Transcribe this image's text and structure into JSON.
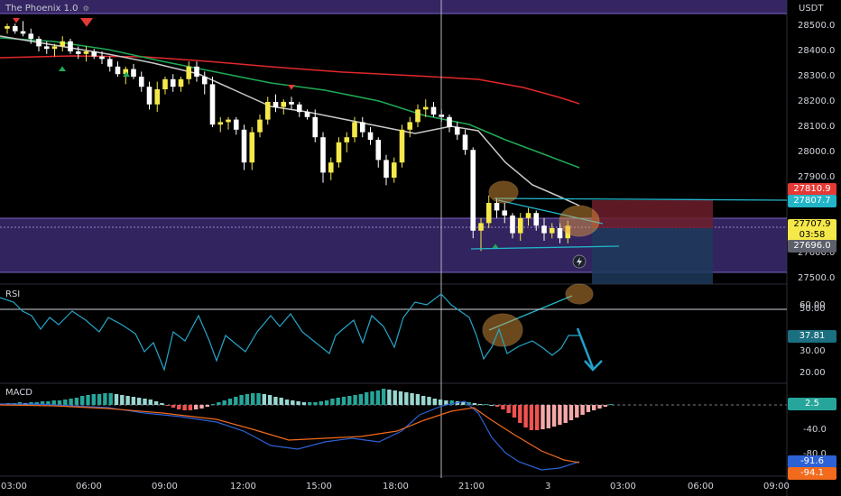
{
  "header": {
    "indicator_name": "The Phoenix 1.0"
  },
  "price_axis": {
    "currency": "USDT",
    "ticks": [
      "28500.0",
      "28400.0",
      "28300.0",
      "28200.0",
      "28100.0",
      "28000.0",
      "27900.0",
      "27600.0",
      "27500.0"
    ],
    "tags": {
      "upper_red": "27810.9",
      "upper_cyan": "27807.7",
      "last_price": "27707.9",
      "countdown": "03:58",
      "lower_gray": "27696.0"
    }
  },
  "rsi_panel": {
    "label": "RSI",
    "ticks": [
      "60.00",
      "50.00",
      "30.00",
      "20.00"
    ],
    "value": "37.81"
  },
  "macd_panel": {
    "label": "MACD",
    "ticks": [
      "-40.0",
      "-80.0"
    ],
    "histogram_value": "2.5",
    "macd_value": "-91.6",
    "signal_value": "-94.1"
  },
  "time_axis": {
    "ticks": [
      "03:00",
      "06:00",
      "09:00",
      "12:00",
      "15:00",
      "18:00",
      "21:00",
      "3",
      "03:00",
      "06:00",
      "09:00"
    ]
  },
  "colors": {
    "bull": "#f5e84a",
    "bear": "#ffffff",
    "ema_fast": "#c9c9c9",
    "ema_mid": "#1faa56",
    "ema_slow": "#e3282b",
    "zone": "#3b2a6e",
    "cyan": "#22b5c9",
    "macd_line": "#2d62d6",
    "signal_line": "#f26b1d",
    "hist_pos": "#26a69a",
    "hist_neg": "#ef5350"
  },
  "chart_data": {
    "type": "candlestick",
    "symbol_quote": "USDT",
    "ylim": [
      27470,
      28560
    ],
    "candles": [
      [
        28490,
        28510,
        28470,
        28500
      ],
      [
        28500,
        28510,
        28470,
        28480
      ],
      [
        28480,
        28520,
        28460,
        28470
      ],
      [
        28470,
        28490,
        28430,
        28450
      ],
      [
        28450,
        28460,
        28400,
        28420
      ],
      [
        28420,
        28440,
        28390,
        28410
      ],
      [
        28410,
        28430,
        28380,
        28420
      ],
      [
        28420,
        28460,
        28400,
        28440
      ],
      [
        28440,
        28450,
        28390,
        28400
      ],
      [
        28400,
        28420,
        28370,
        28390
      ],
      [
        28390,
        28420,
        28360,
        28400
      ],
      [
        28400,
        28410,
        28370,
        28380
      ],
      [
        28380,
        28400,
        28350,
        28370
      ],
      [
        28370,
        28380,
        28320,
        28340
      ],
      [
        28340,
        28360,
        28300,
        28310
      ],
      [
        28310,
        28340,
        28270,
        28330
      ],
      [
        28330,
        28350,
        28290,
        28300
      ],
      [
        28300,
        28320,
        28240,
        28260
      ],
      [
        28260,
        28280,
        28170,
        28190
      ],
      [
        28190,
        28280,
        28160,
        28250
      ],
      [
        28250,
        28300,
        28230,
        28290
      ],
      [
        28290,
        28310,
        28240,
        28260
      ],
      [
        28260,
        28300,
        28240,
        28290
      ],
      [
        28290,
        28360,
        28270,
        28340
      ],
      [
        28340,
        28360,
        28280,
        28300
      ],
      [
        28300,
        28320,
        28230,
        28270
      ],
      [
        28270,
        28300,
        28100,
        28110
      ],
      [
        28110,
        28140,
        28080,
        28120
      ],
      [
        28120,
        28140,
        28090,
        28130
      ],
      [
        28130,
        28140,
        28070,
        28090
      ],
      [
        28090,
        28110,
        27930,
        27960
      ],
      [
        27960,
        28100,
        27930,
        28080
      ],
      [
        28080,
        28150,
        28060,
        28130
      ],
      [
        28130,
        28220,
        28110,
        28200
      ],
      [
        28200,
        28230,
        28160,
        28180
      ],
      [
        28180,
        28210,
        28150,
        28200
      ],
      [
        28200,
        28220,
        28170,
        28190
      ],
      [
        28190,
        28200,
        28140,
        28160
      ],
      [
        28160,
        28170,
        28130,
        28140
      ],
      [
        28140,
        28170,
        28040,
        28060
      ],
      [
        28060,
        28080,
        27880,
        27920
      ],
      [
        27920,
        27980,
        27890,
        27960
      ],
      [
        27960,
        28060,
        27940,
        28040
      ],
      [
        28040,
        28080,
        28000,
        28060
      ],
      [
        28060,
        28140,
        28040,
        28120
      ],
      [
        28120,
        28140,
        28060,
        28080
      ],
      [
        28080,
        28100,
        28030,
        28050
      ],
      [
        28050,
        28060,
        27940,
        27970
      ],
      [
        27970,
        27990,
        27870,
        27900
      ],
      [
        27900,
        27980,
        27880,
        27960
      ],
      [
        27960,
        28110,
        27940,
        28090
      ],
      [
        28090,
        28140,
        28060,
        28120
      ],
      [
        28120,
        28190,
        28100,
        28170
      ],
      [
        28170,
        28210,
        28140,
        28180
      ],
      [
        28180,
        28200,
        28140,
        28150
      ],
      [
        28150,
        28170,
        28120,
        28140
      ],
      [
        28140,
        28150,
        28080,
        28100
      ],
      [
        28100,
        28120,
        28050,
        28070
      ],
      [
        28070,
        28090,
        27990,
        28010
      ],
      [
        28010,
        28020,
        27660,
        27690
      ],
      [
        27690,
        27740,
        27610,
        27720
      ],
      [
        27720,
        27830,
        27700,
        27800
      ],
      [
        27800,
        27820,
        27740,
        27770
      ],
      [
        27770,
        27800,
        27720,
        27750
      ],
      [
        27750,
        27760,
        27660,
        27680
      ],
      [
        27680,
        27760,
        27650,
        27740
      ],
      [
        27740,
        27780,
        27710,
        27760
      ],
      [
        27760,
        27770,
        27690,
        27710
      ],
      [
        27710,
        27740,
        27650,
        27680
      ],
      [
        27680,
        27720,
        27660,
        27700
      ],
      [
        27700,
        27720,
        27640,
        27660
      ],
      [
        27660,
        27730,
        27640,
        27710
      ]
    ]
  }
}
